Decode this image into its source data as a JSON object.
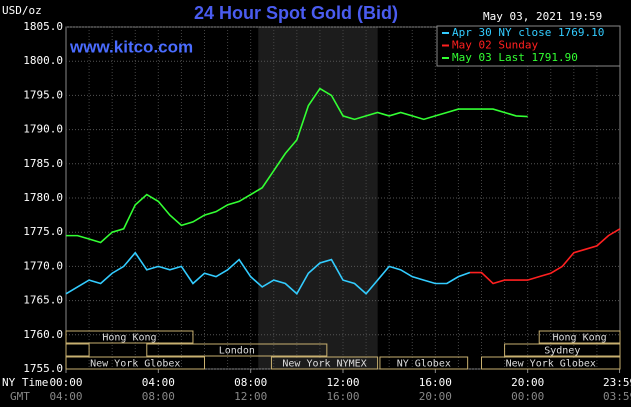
{
  "chart_data": {
    "type": "line",
    "title": "24 Hour Spot Gold (Bid)",
    "site": "www.kitco.com",
    "timestamp": "May 03, 2021 19:59",
    "y_label": "USD/oz",
    "x_label": "NY Time",
    "x2_label": "GMT",
    "x": [
      0,
      0.5,
      1,
      1.5,
      2,
      2.5,
      3,
      3.5,
      4,
      4.5,
      5,
      5.5,
      6,
      6.5,
      7,
      7.5,
      8,
      8.5,
      9,
      9.5,
      10,
      10.5,
      11,
      11.5,
      12,
      12.5,
      13,
      13.5,
      14,
      14.5,
      15,
      15.5,
      16,
      16.5,
      17,
      17.5,
      18,
      18.5,
      19,
      19.5,
      20,
      20.5,
      21,
      21.5,
      22,
      22.5,
      23,
      23.5,
      24
    ],
    "series": [
      {
        "name": "Apr 30 NY close 1769.10",
        "color": "#33ccff",
        "values": [
          1766,
          1767,
          1768,
          1767.5,
          1769,
          1770,
          1772,
          1769.5,
          1770,
          1769.5,
          1770,
          1767.5,
          1769,
          1768.5,
          1769.5,
          1771,
          1768.5,
          1767,
          1768,
          1767.5,
          1766,
          1769,
          1770.5,
          1771,
          1768,
          1767.5,
          1766,
          1768,
          1770,
          1769.5,
          1768.5,
          1768,
          1767.5,
          1767.5,
          1768.5,
          1769.1,
          null,
          null,
          null,
          null,
          null,
          null,
          null,
          null,
          null,
          null,
          null,
          null,
          null
        ]
      },
      {
        "name": "May 02 Sunday",
        "color": "#ff2020",
        "values": [
          null,
          null,
          null,
          null,
          null,
          null,
          null,
          null,
          null,
          null,
          null,
          null,
          null,
          null,
          null,
          null,
          null,
          null,
          null,
          null,
          null,
          null,
          null,
          null,
          null,
          null,
          null,
          null,
          null,
          null,
          null,
          null,
          null,
          null,
          null,
          1769.1,
          1769.1,
          1767.5,
          1768,
          1768,
          1768,
          1768.5,
          1769,
          1770,
          1772,
          1772.5,
          1773,
          1774.5,
          1775.5
        ]
      },
      {
        "name": "May 03 Last 1791.90",
        "color": "#33ff33",
        "values": [
          1774.5,
          1774.5,
          1774,
          1773.5,
          1775,
          1775.5,
          1779,
          1780.5,
          1779.5,
          1777.5,
          1776,
          1776.5,
          1777.5,
          1778,
          1779,
          1779.5,
          1780.5,
          1781.5,
          1784,
          1786.5,
          1788.5,
          1793.5,
          1796,
          1795,
          1792,
          1791.5,
          1792,
          1792.5,
          1792,
          1792.5,
          1792,
          1791.5,
          1792,
          1792.5,
          1793,
          1793,
          1793,
          1793,
          1792.5,
          1792,
          1791.9,
          null,
          null,
          null,
          null,
          null,
          null,
          null,
          null
        ]
      }
    ],
    "xlim": [
      0,
      24
    ],
    "xticks": [
      {
        "value": 0,
        "label": "00:00"
      },
      {
        "value": 4,
        "label": "04:00"
      },
      {
        "value": 8,
        "label": "08:00"
      },
      {
        "value": 12,
        "label": "12:00"
      },
      {
        "value": 16,
        "label": "16:00"
      },
      {
        "value": 20,
        "label": "20:00"
      },
      {
        "value": 23.98,
        "label": "23:59"
      }
    ],
    "x2ticks": [
      {
        "value": 0,
        "label": "04:00"
      },
      {
        "value": 4,
        "label": "08:00"
      },
      {
        "value": 8,
        "label": "12:00"
      },
      {
        "value": 12,
        "label": "16:00"
      },
      {
        "value": 16,
        "label": "20:00"
      },
      {
        "value": 20,
        "label": "00:00"
      },
      {
        "value": 23.98,
        "label": "03:59"
      }
    ],
    "ylim": [
      1755,
      1805
    ],
    "yticks": [
      {
        "value": 1755,
        "label": "1755.0"
      },
      {
        "value": 1760,
        "label": "1760.0"
      },
      {
        "value": 1765,
        "label": "1765.0"
      },
      {
        "value": 1770,
        "label": "1770.0"
      },
      {
        "value": 1775,
        "label": "1775.0"
      },
      {
        "value": 1780,
        "label": "1780.0"
      },
      {
        "value": 1785,
        "label": "1785.0"
      },
      {
        "value": 1790,
        "label": "1790.0"
      },
      {
        "value": 1795,
        "label": "1795.0"
      },
      {
        "value": 1800,
        "label": "1800.0"
      },
      {
        "value": 1805,
        "label": "1805.0"
      }
    ],
    "grid": true,
    "x_grid_step": 1,
    "shade": [
      8.33,
      13.5
    ],
    "sessions": [
      {
        "label": "Hong Kong",
        "start": 0,
        "end": 5.5,
        "row": 0
      },
      {
        "label": "Hong Kong",
        "start": 20.5,
        "end": 24,
        "row": 0
      },
      {
        "start": 0,
        "end": 1,
        "row": 1
      },
      {
        "label": "London",
        "start": 3.5,
        "end": 11.3,
        "row": 1
      },
      {
        "label": "Sydney",
        "start": 19,
        "end": 24,
        "row": 1
      },
      {
        "label": "New York Globex",
        "start": 0,
        "end": 6,
        "row": 2
      },
      {
        "label": "New York NYMEX",
        "start": 8.9,
        "end": 13.5,
        "row": 2
      },
      {
        "label": "NY Globex",
        "start": 13.6,
        "end": 17.4,
        "row": 2
      },
      {
        "label": "New York Globex",
        "start": 18,
        "end": 24,
        "row": 2
      }
    ]
  }
}
